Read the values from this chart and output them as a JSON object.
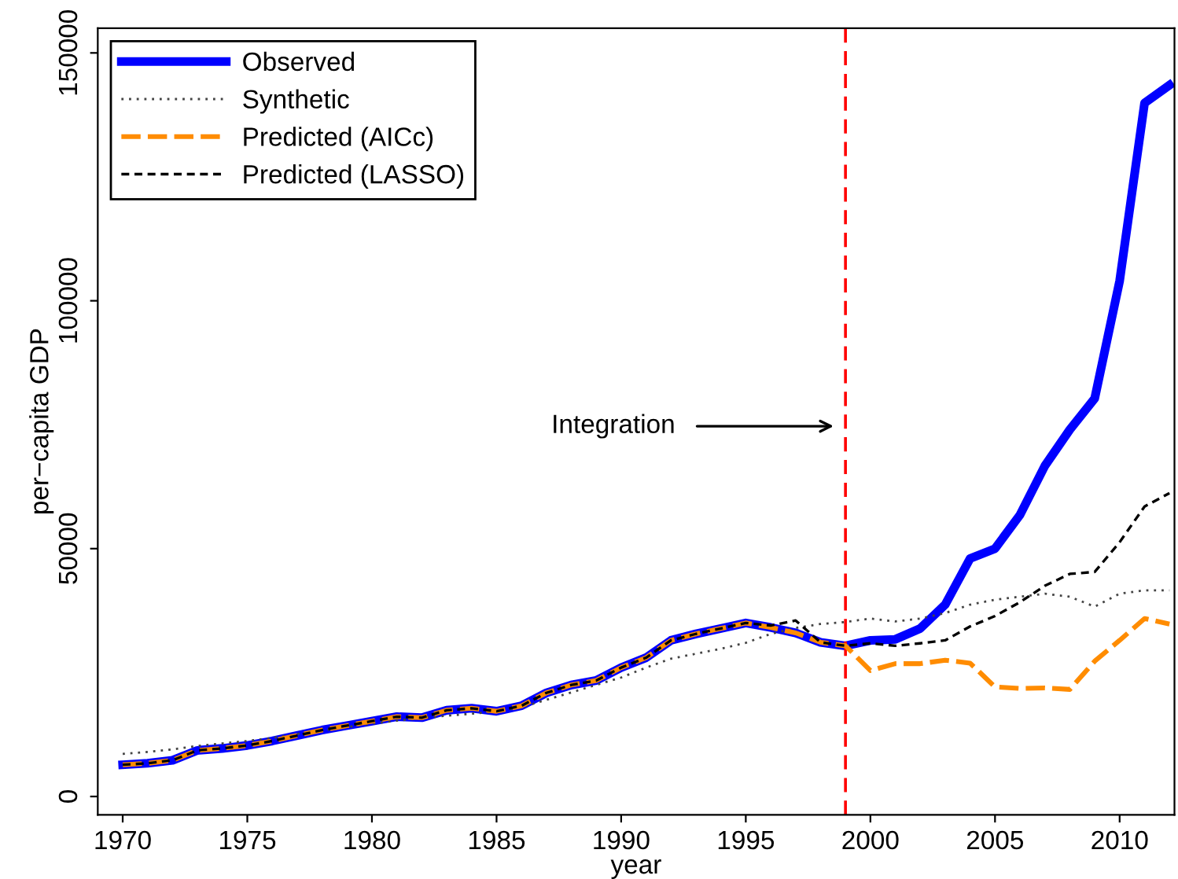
{
  "chart_data": {
    "type": "line",
    "xlabel": "year",
    "ylabel": "per−capita GDP",
    "x": [
      1970,
      1971,
      1972,
      1973,
      1974,
      1975,
      1976,
      1977,
      1978,
      1979,
      1980,
      1981,
      1982,
      1983,
      1984,
      1985,
      1986,
      1987,
      1988,
      1989,
      1990,
      1991,
      1992,
      1993,
      1994,
      1995,
      1996,
      1997,
      1998,
      1999,
      2000,
      2001,
      2002,
      2003,
      2004,
      2005,
      2006,
      2007,
      2008,
      2009,
      2010,
      2011,
      2012
    ],
    "series": [
      {
        "name": "Observed",
        "color": "#0000ff",
        "line_style": "solid",
        "values": [
          6400,
          6700,
          7300,
          9300,
          9700,
          10300,
          11200,
          12300,
          13400,
          14300,
          15200,
          16100,
          15900,
          17400,
          17800,
          17200,
          18300,
          20900,
          22500,
          23400,
          26000,
          28000,
          31500,
          32800,
          33900,
          35000,
          34100,
          33000,
          31100,
          30400,
          31500,
          31700,
          33900,
          38700,
          48000,
          50000,
          56800,
          66700,
          74000,
          80300,
          104000,
          139900,
          143500
        ]
      },
      {
        "name": "Synthetic",
        "color": "#444444",
        "line_style": "dotted",
        "values": [
          8600,
          9000,
          9500,
          10200,
          10700,
          11200,
          11800,
          12600,
          13300,
          14000,
          14700,
          15300,
          15800,
          16300,
          16700,
          17100,
          18000,
          19500,
          21000,
          22500,
          24000,
          26000,
          27800,
          28800,
          29800,
          31000,
          32800,
          34000,
          34800,
          35200,
          35900,
          35300,
          35900,
          37000,
          38700,
          39700,
          40300,
          40900,
          40300,
          38300,
          40900,
          41600,
          41600
        ]
      },
      {
        "name": "Predicted (AICc)",
        "color": "#ff8c00",
        "line_style": "dashed",
        "values": [
          6400,
          6700,
          7300,
          9300,
          9700,
          10300,
          11200,
          12300,
          13400,
          14300,
          15200,
          16100,
          15900,
          17400,
          17800,
          17200,
          18300,
          20900,
          22500,
          23400,
          26000,
          28000,
          31500,
          32800,
          33900,
          35000,
          34100,
          33000,
          31100,
          30400,
          25400,
          26800,
          26800,
          27500,
          26900,
          22100,
          21800,
          21900,
          21600,
          27300,
          31500,
          35900,
          34800
        ]
      },
      {
        "name": "Predicted (LASSO)",
        "color": "#000000",
        "line_style": "dashed",
        "values": [
          6400,
          6700,
          7300,
          9300,
          9700,
          10300,
          11200,
          12300,
          13400,
          14300,
          15200,
          16100,
          15900,
          17400,
          17800,
          17200,
          18300,
          20900,
          22500,
          23400,
          26000,
          28000,
          31500,
          32800,
          33900,
          35000,
          34500,
          35500,
          31100,
          30400,
          30900,
          30400,
          30900,
          31500,
          34300,
          36400,
          39200,
          42500,
          44900,
          45300,
          51300,
          58500,
          61200
        ]
      }
    ],
    "xlim": [
      1969,
      2012.2
    ],
    "ylim": [
      -3700,
      155000
    ],
    "xticks": [
      1970,
      1975,
      1980,
      1985,
      1990,
      1995,
      2000,
      2005,
      2010
    ],
    "yticks": [
      0,
      50000,
      100000,
      150000
    ],
    "ref_lines": [
      {
        "axis": "x",
        "value": 1999,
        "color": "#ff0000",
        "line_style": "dashed"
      }
    ],
    "annotations": [
      {
        "text": "Integration",
        "x": 1998.7,
        "y": 74700
      }
    ],
    "legend": "top left",
    "grid": false
  }
}
